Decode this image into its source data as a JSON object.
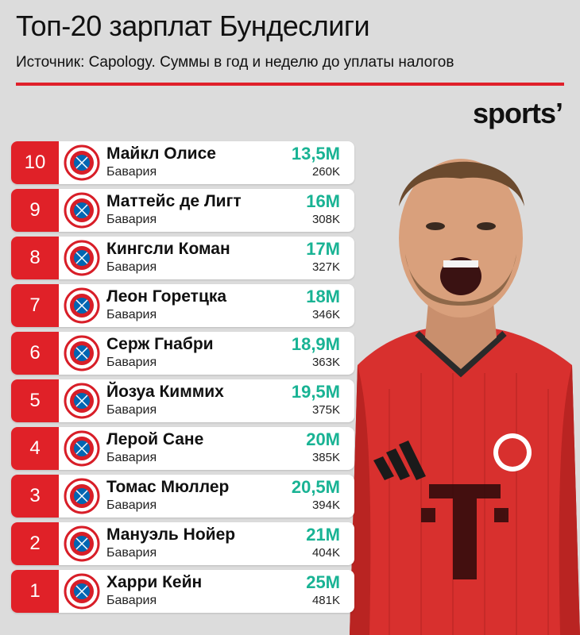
{
  "header": {
    "title": "Топ-20 зарплат Бундеслиги",
    "subtitle": "Источник: Capology. Суммы в год и неделю до уплаты налогов",
    "logo": "sports’"
  },
  "colors": {
    "accent": "#e02128",
    "salary": "#19b394",
    "background": "#dcdcdc"
  },
  "rows": [
    {
      "rank": "10",
      "name": "Майкл Олисе",
      "club": "Бавария",
      "year": "13,5M",
      "week": "260K",
      "icon": "fc-bayern-crest-icon"
    },
    {
      "rank": "9",
      "name": "Маттейс де Лигт",
      "club": "Бавария",
      "year": "16M",
      "week": "308K",
      "icon": "fc-bayern-crest-icon"
    },
    {
      "rank": "8",
      "name": "Кингсли Коман",
      "club": "Бавария",
      "year": "17M",
      "week": "327K",
      "icon": "fc-bayern-crest-icon"
    },
    {
      "rank": "7",
      "name": "Леон Горетцка",
      "club": "Бавария",
      "year": "18M",
      "week": "346K",
      "icon": "fc-bayern-crest-icon"
    },
    {
      "rank": "6",
      "name": "Серж Гнабри",
      "club": "Бавария",
      "year": "18,9M",
      "week": "363K",
      "icon": "fc-bayern-crest-icon"
    },
    {
      "rank": "5",
      "name": "Йозуа Киммих",
      "club": "Бавария",
      "year": "19,5M",
      "week": "375K",
      "icon": "fc-bayern-crest-icon"
    },
    {
      "rank": "4",
      "name": "Лерой Сане",
      "club": "Бавария",
      "year": "20M",
      "week": "385K",
      "icon": "fc-bayern-crest-icon"
    },
    {
      "rank": "3",
      "name": "Томас Мюллер",
      "club": "Бавария",
      "year": "20,5M",
      "week": "394K",
      "icon": "fc-bayern-crest-icon"
    },
    {
      "rank": "2",
      "name": "Мануэль Нойер",
      "club": "Бавария",
      "year": "21M",
      "week": "404K",
      "icon": "fc-bayern-crest-icon"
    },
    {
      "rank": "1",
      "name": "Харри Кейн",
      "club": "Бавария",
      "year": "25M",
      "week": "481K",
      "icon": "fc-bayern-crest-icon"
    }
  ]
}
